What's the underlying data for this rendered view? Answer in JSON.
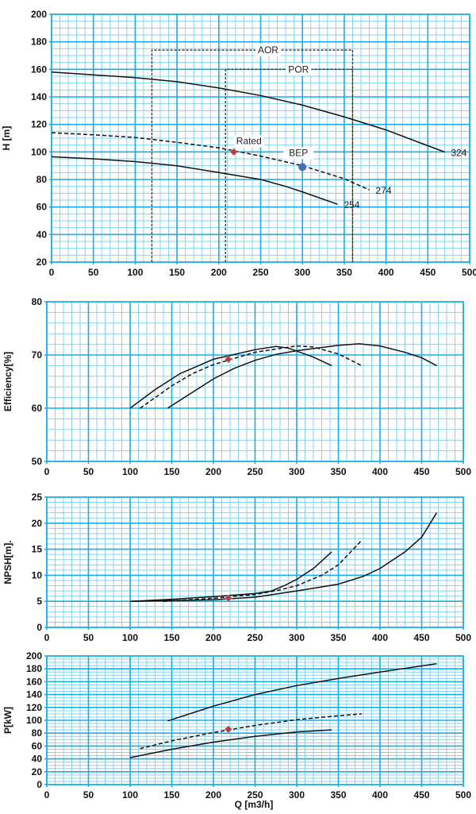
{
  "colors": {
    "grid_major": "#1aaee6",
    "grid_minor": "#86d3f0",
    "curve": "#111111",
    "rated": "#c0392b",
    "bep": "#4a6fb0"
  },
  "xlabel": "Q [m3/h]",
  "chart_data": [
    {
      "type": "line",
      "ylabel": "H [m]",
      "xlim": [
        0,
        500
      ],
      "ylim": [
        20,
        200
      ],
      "xticks": [
        0,
        50,
        100,
        150,
        200,
        250,
        300,
        350,
        400,
        450,
        500
      ],
      "yticks": [
        20,
        40,
        60,
        80,
        100,
        120,
        140,
        160,
        180,
        200
      ],
      "grid": true,
      "minor_x": 10,
      "minor_y": 5,
      "series": [
        {
          "name": "324",
          "dash": false,
          "points": [
            [
              0,
              158
            ],
            [
              50,
              156
            ],
            [
              100,
              154
            ],
            [
              150,
              151
            ],
            [
              200,
              146.5
            ],
            [
              250,
              141
            ],
            [
              300,
              134
            ],
            [
              350,
              125.5
            ],
            [
              400,
              116
            ],
            [
              450,
              104.5
            ],
            [
              470,
              100
            ]
          ]
        },
        {
          "name": "274",
          "dash": true,
          "points": [
            [
              0,
              114
            ],
            [
              50,
              112.5
            ],
            [
              100,
              110.5
            ],
            [
              150,
              107
            ],
            [
              200,
              103
            ],
            [
              250,
              97
            ],
            [
              300,
              90
            ],
            [
              350,
              80.5
            ],
            [
              380,
              72.5
            ]
          ]
        },
        {
          "name": "254",
          "dash": false,
          "points": [
            [
              0,
              96.5
            ],
            [
              50,
              95
            ],
            [
              100,
              93
            ],
            [
              150,
              90
            ],
            [
              200,
              85
            ],
            [
              250,
              80
            ],
            [
              280,
              75
            ],
            [
              300,
              71
            ],
            [
              342,
              62
            ]
          ]
        }
      ],
      "regions": [
        {
          "label": "AOR",
          "x": [
            120,
            360
          ],
          "top": 174
        },
        {
          "label": "POR",
          "x": [
            208,
            360
          ],
          "top": 160
        }
      ],
      "markers": [
        {
          "label": "Rated",
          "x": 218,
          "y": 100,
          "shape": "diamond"
        },
        {
          "label": "BEP",
          "x": 300,
          "y": 89,
          "shape": "circle"
        }
      ]
    },
    {
      "type": "line",
      "ylabel": "Efficiency[%]",
      "xlim": [
        0,
        500
      ],
      "ylim": [
        50,
        80
      ],
      "xticks": [
        0,
        50,
        100,
        150,
        200,
        250,
        300,
        350,
        400,
        450,
        500
      ],
      "yticks": [
        50,
        60,
        70,
        80
      ],
      "grid": true,
      "minor_x": 10,
      "minor_y": 2,
      "series": [
        {
          "dash": false,
          "points": [
            [
              145,
              60
            ],
            [
              175,
              63
            ],
            [
              200,
              65.5
            ],
            [
              225,
              67.5
            ],
            [
              250,
              69
            ],
            [
              275,
              70.1
            ],
            [
              300,
              70.8
            ],
            [
              350,
              71.8
            ],
            [
              375,
              72.1
            ],
            [
              400,
              71.7
            ],
            [
              430,
              70.5
            ],
            [
              450,
              69.5
            ],
            [
              468,
              68
            ]
          ]
        },
        {
          "dash": true,
          "points": [
            [
              112,
              60
            ],
            [
              150,
              64.2
            ],
            [
              175,
              66.5
            ],
            [
              200,
              68.2
            ],
            [
              250,
              70.5
            ],
            [
              300,
              71.7
            ],
            [
              320,
              71.5
            ],
            [
              350,
              70.2
            ],
            [
              378,
              68
            ]
          ]
        },
        {
          "dash": false,
          "points": [
            [
              100,
              60
            ],
            [
              130,
              63.5
            ],
            [
              160,
              66.5
            ],
            [
              200,
              69.2
            ],
            [
              250,
              71
            ],
            [
              275,
              71.6
            ],
            [
              290,
              71.3
            ],
            [
              320,
              69.6
            ],
            [
              342,
              68
            ]
          ]
        }
      ],
      "markers": [
        {
          "x": 218,
          "y": 69.2,
          "shape": "diamond"
        }
      ]
    },
    {
      "type": "line",
      "ylabel": "NPSH[m].",
      "xlim": [
        0,
        500
      ],
      "ylim": [
        0,
        25
      ],
      "xticks": [
        0,
        50,
        100,
        150,
        200,
        250,
        300,
        350,
        400,
        450,
        500
      ],
      "yticks": [
        0,
        5,
        10,
        15,
        20,
        25
      ],
      "grid": true,
      "minor_x": 10,
      "minor_y": 1,
      "series": [
        {
          "dash": false,
          "points": [
            [
              100,
              5
            ],
            [
              150,
              5.4
            ],
            [
              200,
              5.9
            ],
            [
              250,
              6.5
            ],
            [
              270,
              7
            ],
            [
              285,
              8
            ],
            [
              300,
              9.2
            ],
            [
              320,
              11.3
            ],
            [
              342,
              14.5
            ]
          ]
        },
        {
          "dash": true,
          "points": [
            [
              140,
              5
            ],
            [
              200,
              5.6
            ],
            [
              250,
              6.3
            ],
            [
              280,
              7.2
            ],
            [
              300,
              8
            ],
            [
              330,
              10
            ],
            [
              350,
              12
            ],
            [
              378,
              16.7
            ]
          ]
        },
        {
          "dash": false,
          "points": [
            [
              100,
              5
            ],
            [
              200,
              5.3
            ],
            [
              250,
              5.8
            ],
            [
              300,
              7
            ],
            [
              350,
              8.3
            ],
            [
              380,
              9.8
            ],
            [
              400,
              11.3
            ],
            [
              430,
              14.5
            ],
            [
              450,
              17.3
            ],
            [
              468,
              22
            ]
          ]
        }
      ],
      "markers": [
        {
          "x": 218,
          "y": 5.6,
          "shape": "diamond"
        }
      ]
    },
    {
      "type": "line",
      "ylabel": "P[kW]",
      "xlim": [
        0,
        500
      ],
      "ylim": [
        0,
        200
      ],
      "xticks": [
        0,
        50,
        100,
        150,
        200,
        250,
        300,
        350,
        400,
        450,
        500
      ],
      "yticks": [
        0,
        20,
        40,
        60,
        80,
        100,
        120,
        140,
        160,
        180,
        200
      ],
      "grid": true,
      "minor_x": 10,
      "minor_y": 5,
      "series": [
        {
          "dash": false,
          "points": [
            [
              145,
              99
            ],
            [
              200,
              122
            ],
            [
              250,
              140
            ],
            [
              300,
              154
            ],
            [
              350,
              165
            ],
            [
              400,
              175
            ],
            [
              468,
              188
            ]
          ]
        },
        {
          "dash": true,
          "points": [
            [
              112,
              56
            ],
            [
              150,
              68
            ],
            [
              200,
              81
            ],
            [
              250,
              92
            ],
            [
              300,
              101
            ],
            [
              350,
              107
            ],
            [
              378,
              110
            ]
          ]
        },
        {
          "dash": false,
          "points": [
            [
              100,
              42
            ],
            [
              150,
              55
            ],
            [
              200,
              66
            ],
            [
              250,
              75
            ],
            [
              300,
              82
            ],
            [
              342,
              85
            ]
          ]
        }
      ],
      "markers": [
        {
          "x": 218,
          "y": 86,
          "shape": "diamond"
        }
      ]
    }
  ]
}
